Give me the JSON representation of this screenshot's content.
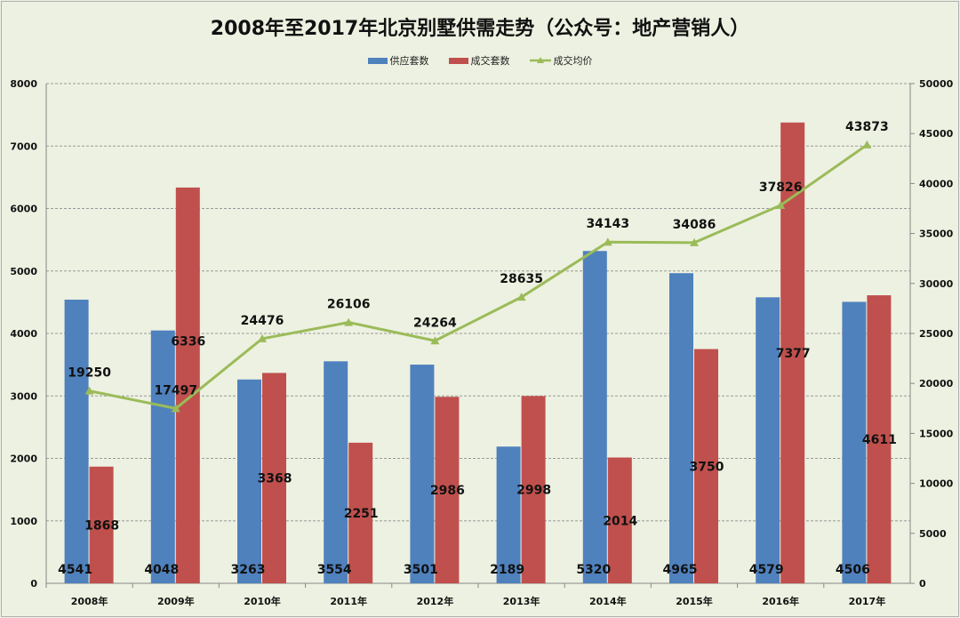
{
  "chart_data": {
    "type": "bar+line",
    "title": "2008年至2017年北京别墅供需走势（公众号：地产营销人）",
    "categories": [
      "2008年",
      "2009年",
      "2010年",
      "2011年",
      "2012年",
      "2013年",
      "2014年",
      "2015年",
      "2016年",
      "2017年"
    ],
    "series": [
      {
        "name": "供应套数",
        "type": "bar",
        "axis": "left",
        "color": "#4f81bd",
        "values": [
          4541,
          4048,
          3263,
          3554,
          3501,
          2189,
          5320,
          4965,
          4579,
          4506
        ]
      },
      {
        "name": "成交套数",
        "type": "bar",
        "axis": "left",
        "color": "#c0504d",
        "values": [
          1868,
          6336,
          3368,
          2251,
          2986,
          2998,
          2014,
          3750,
          7377,
          4611
        ]
      },
      {
        "name": "成交均价",
        "type": "line",
        "axis": "right",
        "color": "#9bbb59",
        "marker": "triangle",
        "values": [
          19250,
          17497,
          24476,
          26106,
          24264,
          28635,
          34143,
          34086,
          37826,
          43873
        ]
      }
    ],
    "ylim_left": [
      0,
      8000
    ],
    "yticks_left": [
      0,
      1000,
      2000,
      3000,
      4000,
      5000,
      6000,
      7000,
      8000
    ],
    "ylim_right": [
      0,
      50000
    ],
    "yticks_right": [
      0,
      5000,
      10000,
      15000,
      20000,
      25000,
      30000,
      35000,
      40000,
      45000,
      50000
    ],
    "grid": "dashed horizontal",
    "legend": "top"
  }
}
